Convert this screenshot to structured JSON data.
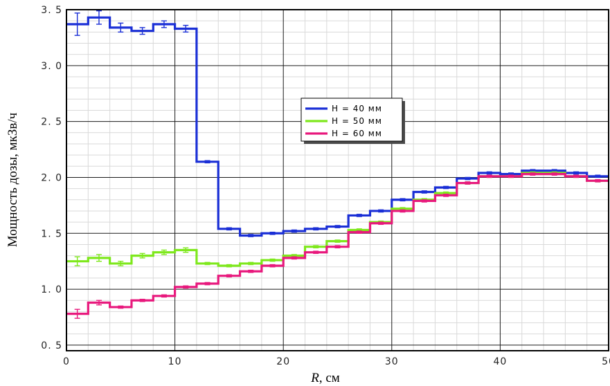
{
  "chart_data": {
    "type": "line",
    "step": true,
    "title": "",
    "xlabel_italic": "R",
    "xlabel_rest": ", см",
    "ylabel": "Мощность дозы, мкЗв/ч",
    "xlim": [
      0,
      50
    ],
    "ylim": [
      0.45,
      3.5
    ],
    "x_ticks": [
      0,
      10,
      20,
      30,
      40,
      50
    ],
    "x_tick_labels": [
      "0",
      "10",
      "20",
      "30",
      "40",
      "50"
    ],
    "y_ticks": [
      0.5,
      1.0,
      1.5,
      2.0,
      2.5,
      3.0,
      3.5
    ],
    "y_tick_labels": [
      "0. 5",
      "1. 0",
      "1. 5",
      "2. 0",
      "2. 5",
      "3. 0",
      "3. 5"
    ],
    "grid": true,
    "minor_grid": true,
    "legend_position": "center",
    "bin_edges": [
      0,
      2,
      4,
      6,
      8,
      10,
      12,
      14,
      16,
      18,
      20,
      22,
      24,
      26,
      28,
      30,
      32,
      34,
      36,
      38,
      40,
      42,
      44,
      46,
      48,
      50
    ],
    "series": [
      {
        "name": "H = 40 мм",
        "color": "#1a2fd6",
        "values": [
          3.37,
          3.43,
          3.34,
          3.31,
          3.37,
          3.33,
          2.14,
          1.54,
          1.48,
          1.5,
          1.52,
          1.54,
          1.56,
          1.66,
          1.7,
          1.8,
          1.87,
          1.91,
          1.99,
          2.04,
          2.03,
          2.06,
          2.06,
          2.04,
          2.01
        ],
        "errors": [
          0.1,
          0.06,
          0.04,
          0.03,
          0.03,
          0.03,
          0.01,
          0.01,
          0.01,
          0.01,
          0.01,
          0.01,
          0.01,
          0.01,
          0.01,
          0.01,
          0.01,
          0.01,
          0.01,
          0.01,
          0.01,
          0.01,
          0.01,
          0.01,
          0.01
        ]
      },
      {
        "name": "H = 50 мм",
        "color": "#7ee81c",
        "values": [
          1.25,
          1.28,
          1.23,
          1.3,
          1.33,
          1.35,
          1.23,
          1.21,
          1.23,
          1.26,
          1.3,
          1.38,
          1.43,
          1.53,
          1.6,
          1.72,
          1.8,
          1.86,
          1.95,
          2.01,
          2.01,
          2.04,
          2.04,
          2.01,
          1.97
        ],
        "errors": [
          0.04,
          0.03,
          0.02,
          0.02,
          0.02,
          0.02,
          0.01,
          0.01,
          0.01,
          0.01,
          0.01,
          0.01,
          0.01,
          0.01,
          0.01,
          0.01,
          0.01,
          0.01,
          0.01,
          0.01,
          0.01,
          0.01,
          0.01,
          0.01,
          0.01
        ]
      },
      {
        "name": "H = 60 мм",
        "color": "#e8197d",
        "values": [
          0.78,
          0.88,
          0.84,
          0.9,
          0.94,
          1.02,
          1.05,
          1.12,
          1.16,
          1.21,
          1.28,
          1.33,
          1.38,
          1.51,
          1.59,
          1.7,
          1.79,
          1.84,
          1.95,
          2.01,
          2.01,
          2.03,
          2.03,
          2.01,
          1.97
        ],
        "errors": [
          0.04,
          0.02,
          0.01,
          0.01,
          0.01,
          0.01,
          0.01,
          0.01,
          0.01,
          0.01,
          0.01,
          0.01,
          0.01,
          0.01,
          0.01,
          0.01,
          0.01,
          0.01,
          0.01,
          0.01,
          0.01,
          0.01,
          0.01,
          0.01,
          0.01
        ]
      }
    ]
  }
}
